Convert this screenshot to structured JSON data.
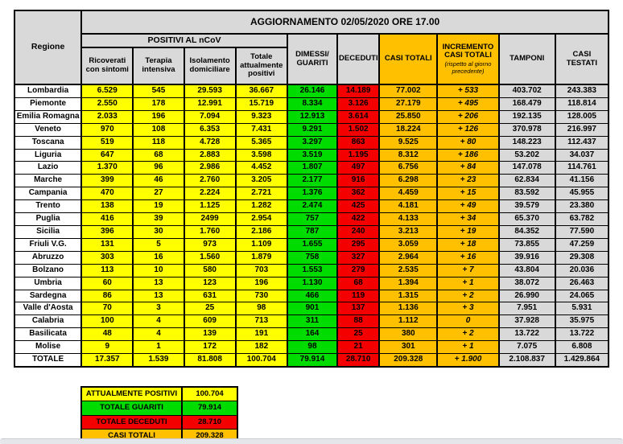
{
  "header": {
    "title": "AGGIORNAMENTO 02/05/2020 ORE 17.00",
    "regione": "Regione",
    "positivi_group": "POSITIVI AL nCoV",
    "ricoverati": "Ricoverati con sintomi",
    "terapia": "Terapia intensiva",
    "isolamento": "Isolamento domiciliare",
    "totale_positivi": "Totale attualmente positivi",
    "dimessi": "DIMESSI/ GUARITI",
    "deceduti": "DECEDUTI",
    "casi_totali": "CASI TOTALI",
    "incremento": "INCREMENTO CASI  TOTALI",
    "incremento_note": "(rispetto al giorno precedente)",
    "tamponi": "TAMPONI",
    "casi_testati": "CASI TESTATI"
  },
  "rows": [
    {
      "regione": "Lombardia",
      "ricoverati": "6.529",
      "terapia": "545",
      "isolamento": "29.593",
      "totale_positivi": "36.667",
      "dimessi": "26.146",
      "deceduti": "14.189",
      "casi_totali": "77.002",
      "incremento": "+ 533",
      "tamponi": "403.702",
      "casi_testati": "243.383"
    },
    {
      "regione": "Piemonte",
      "ricoverati": "2.550",
      "terapia": "178",
      "isolamento": "12.991",
      "totale_positivi": "15.719",
      "dimessi": "8.334",
      "deceduti": "3.126",
      "casi_totali": "27.179",
      "incremento": "+ 495",
      "tamponi": "168.479",
      "casi_testati": "118.814"
    },
    {
      "regione": "Emilia Romagna",
      "ricoverati": "2.033",
      "terapia": "196",
      "isolamento": "7.094",
      "totale_positivi": "9.323",
      "dimessi": "12.913",
      "deceduti": "3.614",
      "casi_totali": "25.850",
      "incremento": "+ 206",
      "tamponi": "192.135",
      "casi_testati": "128.005"
    },
    {
      "regione": "Veneto",
      "ricoverati": "970",
      "terapia": "108",
      "isolamento": "6.353",
      "totale_positivi": "7.431",
      "dimessi": "9.291",
      "deceduti": "1.502",
      "casi_totali": "18.224",
      "incremento": "+ 126",
      "tamponi": "370.978",
      "casi_testati": "216.997"
    },
    {
      "regione": "Toscana",
      "ricoverati": "519",
      "terapia": "118",
      "isolamento": "4.728",
      "totale_positivi": "5.365",
      "dimessi": "3.297",
      "deceduti": "863",
      "casi_totali": "9.525",
      "incremento": "+ 80",
      "tamponi": "148.223",
      "casi_testati": "112.437"
    },
    {
      "regione": "Liguria",
      "ricoverati": "647",
      "terapia": "68",
      "isolamento": "2.883",
      "totale_positivi": "3.598",
      "dimessi": "3.519",
      "deceduti": "1.195",
      "casi_totali": "8.312",
      "incremento": "+ 186",
      "tamponi": "53.202",
      "casi_testati": "34.037"
    },
    {
      "regione": "Lazio",
      "ricoverati": "1.370",
      "terapia": "96",
      "isolamento": "2.986",
      "totale_positivi": "4.452",
      "dimessi": "1.807",
      "deceduti": "497",
      "casi_totali": "6.756",
      "incremento": "+ 84",
      "tamponi": "147.078",
      "casi_testati": "114.761"
    },
    {
      "regione": "Marche",
      "ricoverati": "399",
      "terapia": "46",
      "isolamento": "2.760",
      "totale_positivi": "3.205",
      "dimessi": "2.177",
      "deceduti": "916",
      "casi_totali": "6.298",
      "incremento": "+ 23",
      "tamponi": "62.834",
      "casi_testati": "41.156"
    },
    {
      "regione": "Campania",
      "ricoverati": "470",
      "terapia": "27",
      "isolamento": "2.224",
      "totale_positivi": "2.721",
      "dimessi": "1.376",
      "deceduti": "362",
      "casi_totali": "4.459",
      "incremento": "+ 15",
      "tamponi": "83.592",
      "casi_testati": "45.955"
    },
    {
      "regione": "Trento",
      "ricoverati": "138",
      "terapia": "19",
      "isolamento": "1.125",
      "totale_positivi": "1.282",
      "dimessi": "2.474",
      "deceduti": "425",
      "casi_totali": "4.181",
      "incremento": "+ 49",
      "tamponi": "39.579",
      "casi_testati": "23.380"
    },
    {
      "regione": "Puglia",
      "ricoverati": "416",
      "terapia": "39",
      "isolamento": "2499",
      "totale_positivi": "2.954",
      "dimessi": "757",
      "deceduti": "422",
      "casi_totali": "4.133",
      "incremento": "+ 34",
      "tamponi": "65.370",
      "casi_testati": "63.782"
    },
    {
      "regione": "Sicilia",
      "ricoverati": "396",
      "terapia": "30",
      "isolamento": "1.760",
      "totale_positivi": "2.186",
      "dimessi": "787",
      "deceduti": "240",
      "casi_totali": "3.213",
      "incremento": "+ 19",
      "tamponi": "84.352",
      "casi_testati": "77.590"
    },
    {
      "regione": "Friuli V.G.",
      "ricoverati": "131",
      "terapia": "5",
      "isolamento": "973",
      "totale_positivi": "1.109",
      "dimessi": "1.655",
      "deceduti": "295",
      "casi_totali": "3.059",
      "incremento": "+ 18",
      "tamponi": "73.855",
      "casi_testati": "47.259"
    },
    {
      "regione": "Abruzzo",
      "ricoverati": "303",
      "terapia": "16",
      "isolamento": "1.560",
      "totale_positivi": "1.879",
      "dimessi": "758",
      "deceduti": "327",
      "casi_totali": "2.964",
      "incremento": "+ 16",
      "tamponi": "39.916",
      "casi_testati": "29.308"
    },
    {
      "regione": "Bolzano",
      "ricoverati": "113",
      "terapia": "10",
      "isolamento": "580",
      "totale_positivi": "703",
      "dimessi": "1.553",
      "deceduti": "279",
      "casi_totali": "2.535",
      "incremento": "+ 7",
      "tamponi": "43.804",
      "casi_testati": "20.036"
    },
    {
      "regione": "Umbria",
      "ricoverati": "60",
      "terapia": "13",
      "isolamento": "123",
      "totale_positivi": "196",
      "dimessi": "1.130",
      "deceduti": "68",
      "casi_totali": "1.394",
      "incremento": "+ 1",
      "tamponi": "38.072",
      "casi_testati": "26.463"
    },
    {
      "regione": "Sardegna",
      "ricoverati": "86",
      "terapia": "13",
      "isolamento": "631",
      "totale_positivi": "730",
      "dimessi": "466",
      "deceduti": "119",
      "casi_totali": "1.315",
      "incremento": "+ 2",
      "tamponi": "26.990",
      "casi_testati": "24.065"
    },
    {
      "regione": "Valle d'Aosta",
      "ricoverati": "70",
      "terapia": "3",
      "isolamento": "25",
      "totale_positivi": "98",
      "dimessi": "901",
      "deceduti": "137",
      "casi_totali": "1.136",
      "incremento": "+ 3",
      "tamponi": "7.951",
      "casi_testati": "5.931"
    },
    {
      "regione": "Calabria",
      "ricoverati": "100",
      "terapia": "4",
      "isolamento": "609",
      "totale_positivi": "713",
      "dimessi": "311",
      "deceduti": "88",
      "casi_totali": "1.112",
      "incremento": "0",
      "tamponi": "37.928",
      "casi_testati": "35.975"
    },
    {
      "regione": "Basilicata",
      "ricoverati": "48",
      "terapia": "4",
      "isolamento": "139",
      "totale_positivi": "191",
      "dimessi": "164",
      "deceduti": "25",
      "casi_totali": "380",
      "incremento": "+ 2",
      "tamponi": "13.722",
      "casi_testati": "13.722"
    },
    {
      "regione": "Molise",
      "ricoverati": "9",
      "terapia": "1",
      "isolamento": "172",
      "totale_positivi": "182",
      "dimessi": "98",
      "deceduti": "21",
      "casi_totali": "301",
      "incremento": "+ 1",
      "tamponi": "7.075",
      "casi_testati": "6.808"
    },
    {
      "regione": "TOTALE",
      "ricoverati": "17.357",
      "terapia": "1.539",
      "isolamento": "81.808",
      "totale_positivi": "100.704",
      "dimessi": "79.914",
      "deceduti": "28.710",
      "casi_totali": "209.328",
      "incremento": "+ 1.900",
      "tamponi": "2.108.837",
      "casi_testati": "1.429.864"
    }
  ],
  "summary": [
    {
      "label": "ATTUALMENTE POSITIVI",
      "value": "100.704",
      "color": "yellow"
    },
    {
      "label": "TOTALE GUARITI",
      "value": "79.914",
      "color": "green"
    },
    {
      "label": "TOTALE DECEDUTI",
      "value": "28.710",
      "color": "red"
    },
    {
      "label": "CASI TOTALI",
      "value": "209.328",
      "color": "orange"
    }
  ],
  "colors": {
    "yellow": "#FFFF00",
    "green": "#00DC00",
    "red": "#F40000",
    "orange": "#FFC000",
    "gray": "#D9D9D9"
  }
}
